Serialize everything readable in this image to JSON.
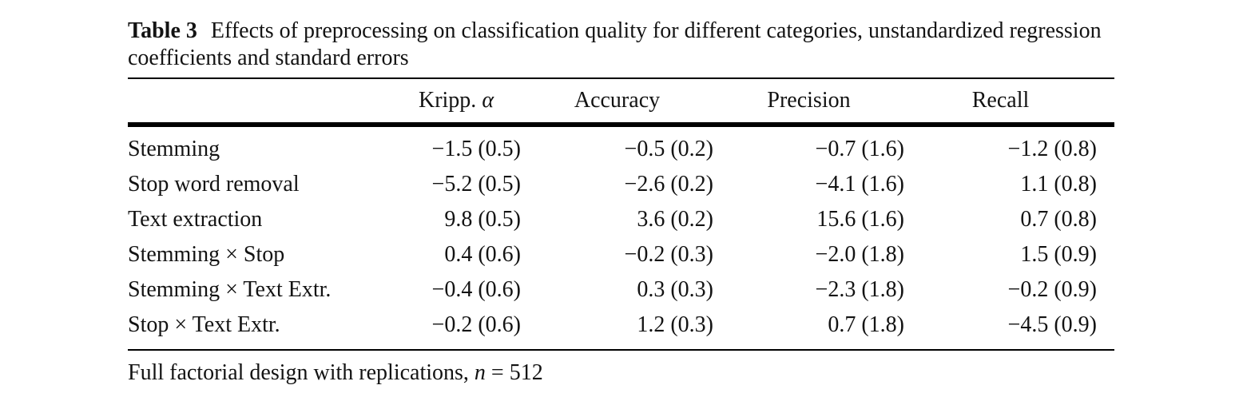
{
  "page": {
    "background": "#ffffff",
    "text_color": "#131313",
    "rule_color": "#000000"
  },
  "table": {
    "label": "Table 3",
    "caption": "Effects of preprocessing on classification quality for different categories, unstandardized regression coefficients and standard errors",
    "columns": [
      {
        "label": "",
        "math": ""
      },
      {
        "label": "Kripp. ",
        "math": "α"
      },
      {
        "label": "Accuracy",
        "math": ""
      },
      {
        "label": "Precision",
        "math": ""
      },
      {
        "label": "Recall",
        "math": ""
      }
    ],
    "rows": [
      {
        "label": "Stemming",
        "values": [
          "−1.5 (0.5)",
          "−0.5 (0.2)",
          "−0.7 (1.6)",
          "−1.2 (0.8)"
        ]
      },
      {
        "label": "Stop word removal",
        "values": [
          "−5.2 (0.5)",
          "−2.6 (0.2)",
          "−4.1 (1.6)",
          "1.1 (0.8)"
        ]
      },
      {
        "label": "Text extraction",
        "values": [
          "9.8 (0.5)",
          "3.6 (0.2)",
          "15.6 (1.6)",
          "0.7 (0.8)"
        ]
      },
      {
        "label": "Stemming × Stop",
        "values": [
          "0.4 (0.6)",
          "−0.2 (0.3)",
          "−2.0 (1.8)",
          "1.5 (0.9)"
        ]
      },
      {
        "label": "Stemming × Text Extr.",
        "values": [
          "−0.4 (0.6)",
          "0.3 (0.3)",
          "−2.3 (1.8)",
          "−0.2 (0.9)"
        ]
      },
      {
        "label": "Stop × Text Extr.",
        "values": [
          "−0.2 (0.6)",
          "1.2 (0.3)",
          "0.7 (1.8)",
          "−4.5 (0.9)"
        ]
      }
    ],
    "footnote": {
      "text": "Full factorial design with replications, ",
      "var": "n",
      "value": " = 512"
    }
  },
  "chart_data": {
    "type": "table",
    "title": "Table 3 Effects of preprocessing on classification quality for different categories, unstandardized regression coefficients and standard errors",
    "categories": [
      "Stemming",
      "Stop word removal",
      "Text extraction",
      "Stemming × Stop",
      "Stemming × Text Extr.",
      "Stop × Text Extr."
    ],
    "series": [
      {
        "name": "Kripp. α",
        "coef": [
          -1.5,
          -5.2,
          9.8,
          0.4,
          -0.4,
          -0.2
        ],
        "se": [
          0.5,
          0.5,
          0.5,
          0.6,
          0.6,
          0.6
        ]
      },
      {
        "name": "Accuracy",
        "coef": [
          -0.5,
          -2.6,
          3.6,
          -0.2,
          0.3,
          1.2
        ],
        "se": [
          0.2,
          0.2,
          0.2,
          0.3,
          0.3,
          0.3
        ]
      },
      {
        "name": "Precision",
        "coef": [
          -0.7,
          -4.1,
          15.6,
          -2.0,
          -2.3,
          0.7
        ],
        "se": [
          1.6,
          1.6,
          1.6,
          1.8,
          1.8,
          1.8
        ]
      },
      {
        "name": "Recall",
        "coef": [
          -1.2,
          1.1,
          0.7,
          1.5,
          -0.2,
          -4.5
        ],
        "se": [
          0.8,
          0.8,
          0.8,
          0.9,
          0.9,
          0.9
        ]
      }
    ],
    "note": "Full factorial design with replications, n = 512",
    "n": 512
  }
}
